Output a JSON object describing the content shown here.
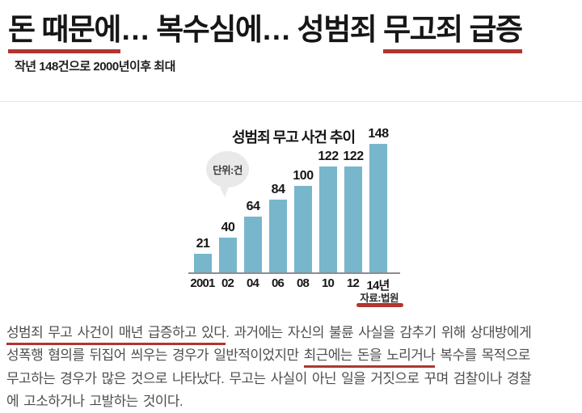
{
  "headline": {
    "segments": [
      {
        "text": "돈 때문에",
        "underline": true
      },
      {
        "text": "… 복수심에… 성범죄 ",
        "underline": false
      },
      {
        "text": "무고죄 급증",
        "underline": true
      }
    ]
  },
  "subtitle": "작년 148건으로 2000년이후 최대",
  "chart_data": {
    "type": "bar",
    "title": "성범죄 무고 사건 추이",
    "unit_label": "단위:건",
    "categories": [
      "2001",
      "02",
      "04",
      "06",
      "08",
      "10",
      "12",
      "14년"
    ],
    "values": [
      21,
      40,
      64,
      84,
      100,
      122,
      122,
      148
    ],
    "source": "자료:법원",
    "xlabel": "",
    "ylabel": "",
    "ylim": [
      0,
      160
    ],
    "grid": false,
    "legend": false,
    "bar_color": "#78b6cc"
  },
  "body": {
    "lines": [
      {
        "segments": [
          {
            "text": "성범죄 무고 사건이 매년 급증하고 있다",
            "underline": true
          },
          {
            "text": ". 과거에는 자신의 불륜 사실을 감추기 위해 상대방에게",
            "underline": false
          }
        ]
      },
      {
        "segments": [
          {
            "text": "성폭행 혐의를 뒤집어 씌우는 경우가 일반적이었지만 ",
            "underline": false
          },
          {
            "text": "최근에는 돈을 노리거나",
            "underline": true
          },
          {
            "text": " 복수를 목적으로",
            "underline": false
          }
        ]
      },
      {
        "segments": [
          {
            "text": "무고하는 경우가 많은 것으로 나타났다. 무고는 사실이 아닌 일을 거짓으로 꾸며 검찰이나 경찰",
            "underline": false
          }
        ]
      },
      {
        "segments": [
          {
            "text": "에 고소하거나 고발하는 것이다.",
            "underline": false
          }
        ]
      }
    ]
  },
  "colors": {
    "accent_red": "#b13530",
    "bar_blue": "#78b6cc",
    "balloon_gray": "#e9e9e9"
  }
}
